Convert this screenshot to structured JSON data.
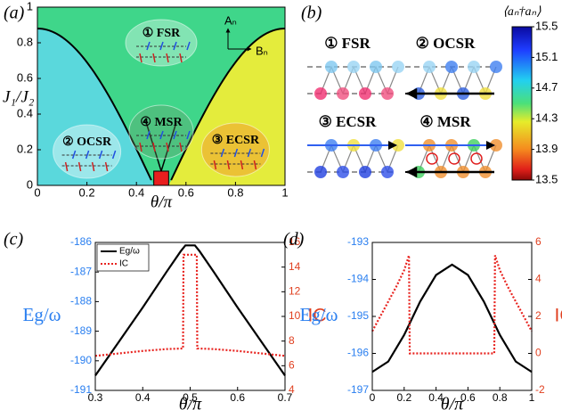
{
  "panel_a": {
    "label": "(a)",
    "xlabel": "θ/π",
    "ylabel": "J₁/J₂",
    "xlim": [
      0,
      1
    ],
    "ylim": [
      0,
      1
    ],
    "xticks": [
      0,
      0.2,
      0.4,
      0.6,
      0.8,
      1
    ],
    "yticks": [
      0,
      0.2,
      0.4,
      0.6,
      0.8,
      1
    ],
    "regions": [
      "① FSR",
      "② OCSR",
      "④ MSR",
      "③ ECSR"
    ],
    "axes_legend": [
      "Aₙ",
      "Bₙ"
    ]
  },
  "panel_b": {
    "label": "(b)",
    "phases": [
      "① FSR",
      "② OCSR",
      "③ ECSR",
      "④ MSR"
    ],
    "colorbar": {
      "label": "⟨aₙ†aₙ⟩",
      "lim": [
        13.5,
        15.5
      ],
      "ticks": [
        13.5,
        13.9,
        14.3,
        14.7,
        15.1,
        15.5
      ]
    }
  },
  "chart_data": [
    {
      "type": "line",
      "label": "(c)",
      "xlabel": "θ/π",
      "ylabel": "Eg/ω",
      "y2label": "IC",
      "xlim": [
        0.3,
        0.7
      ],
      "xticks": [
        0.3,
        0.4,
        0.5,
        0.6,
        0.7
      ],
      "ylim": [
        -191,
        -186
      ],
      "yticks": [
        -191,
        -190,
        -189,
        -188,
        -187,
        -186
      ],
      "y2lim": [
        4,
        16
      ],
      "y2ticks": [
        4,
        6,
        8,
        10,
        12,
        14,
        16
      ],
      "legend": "upper left",
      "series": [
        {
          "name": "Eg/ω",
          "color": "#000000",
          "x": [
            0.3,
            0.35,
            0.4,
            0.45,
            0.48,
            0.49,
            0.5,
            0.51,
            0.52,
            0.55,
            0.6,
            0.65,
            0.7
          ],
          "values": [
            -190.5,
            -189.35,
            -188.2,
            -187.0,
            -186.3,
            -186.1,
            -186.1,
            -186.1,
            -186.3,
            -187.0,
            -188.2,
            -189.35,
            -190.5
          ]
        },
        {
          "name": "IC",
          "color": "#e8231f",
          "axis": "y2",
          "dashed": true,
          "x": [
            0.3,
            0.35,
            0.4,
            0.45,
            0.485,
            0.486,
            0.5,
            0.514,
            0.515,
            0.55,
            0.6,
            0.65,
            0.7
          ],
          "values": [
            6.8,
            7.0,
            7.2,
            7.35,
            7.4,
            15,
            15,
            15,
            7.4,
            7.35,
            7.2,
            7.0,
            6.8
          ]
        }
      ]
    },
    {
      "type": "line",
      "label": "(d)",
      "xlabel": "θ/π",
      "ylabel": "Eg/ω",
      "y2label": "IC",
      "xlim": [
        0,
        1
      ],
      "xticks": [
        0,
        0.2,
        0.4,
        0.6,
        0.8,
        1
      ],
      "ylim": [
        -197,
        -193
      ],
      "yticks": [
        -197,
        -196,
        -195,
        -194,
        -193
      ],
      "y2lim": [
        -2,
        6
      ],
      "y2ticks": [
        -2,
        0,
        2,
        4,
        6
      ],
      "series": [
        {
          "name": "Eg/ω",
          "color": "#000000",
          "x": [
            0,
            0.1,
            0.2,
            0.3,
            0.4,
            0.5,
            0.6,
            0.7,
            0.8,
            0.9,
            1
          ],
          "values": [
            -196.5,
            -196.22,
            -195.5,
            -194.6,
            -193.88,
            -193.6,
            -193.88,
            -194.6,
            -195.5,
            -196.22,
            -196.5
          ]
        },
        {
          "name": "IC",
          "color": "#e8231f",
          "axis": "y2",
          "dashed": true,
          "x": [
            0,
            0.05,
            0.1,
            0.15,
            0.2,
            0.23,
            0.235,
            0.5,
            0.765,
            0.77,
            0.8,
            0.85,
            0.9,
            0.95,
            1
          ],
          "values": [
            1.2,
            2.0,
            2.8,
            3.6,
            4.5,
            5.3,
            0,
            0,
            0,
            5.3,
            4.5,
            3.6,
            2.8,
            2.0,
            1.2
          ]
        }
      ]
    }
  ]
}
